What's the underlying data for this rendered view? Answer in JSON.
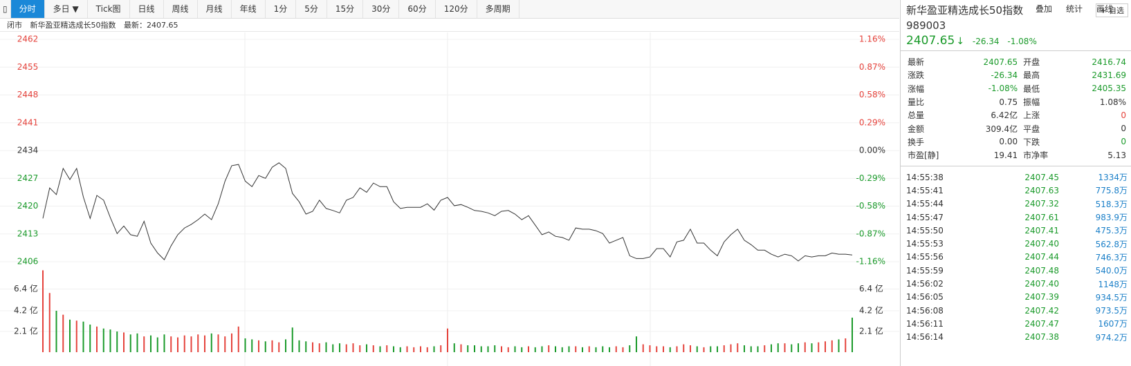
{
  "toolbar": {
    "tabs": [
      "分时",
      "多日 ▼",
      "Tick图",
      "日线",
      "周线",
      "月线",
      "年线",
      "1分",
      "5分",
      "15分",
      "30分",
      "60分",
      "120分",
      "多周期"
    ],
    "tools": [
      "叠加",
      "统计",
      "画线"
    ]
  },
  "info": {
    "status": "闭市",
    "name": "新华盈亚精选成长50指数",
    "latest": "最新：2407.65"
  },
  "chart_data": [
    {
      "type": "line",
      "series": [
        {
          "name": "新华盈亚精选成长50指数",
          "color": "#333333",
          "values": [
            2416.9,
            2424.6,
            2422.9,
            2429.5,
            2426.7,
            2429.5,
            2422.3,
            2416.9,
            2422.7,
            2421.5,
            2417.1,
            2413.1,
            2415.0,
            2412.8,
            2412.4,
            2416.2,
            2410.7,
            2408.2,
            2406.5,
            2410.0,
            2412.8,
            2414.5,
            2415.4,
            2416.6,
            2418.0,
            2416.6,
            2420.6,
            2426.3,
            2430.2,
            2430.5,
            2426.3,
            2424.9,
            2427.7,
            2427.0,
            2429.8,
            2430.9,
            2429.5,
            2423.2,
            2421.1,
            2418.0,
            2418.7,
            2421.5,
            2419.4,
            2418.9,
            2418.3,
            2421.5,
            2422.2,
            2424.6,
            2423.5,
            2425.8,
            2424.9,
            2424.9,
            2421.1,
            2419.4,
            2419.7,
            2419.7,
            2419.7,
            2420.6,
            2419.0,
            2421.5,
            2422.2,
            2420.1,
            2420.4,
            2419.7,
            2418.9,
            2418.7,
            2418.3,
            2417.6,
            2418.7,
            2418.9,
            2418.0,
            2416.6,
            2417.6,
            2415.2,
            2412.8,
            2413.5,
            2412.4,
            2412.1,
            2411.4,
            2414.5,
            2414.2,
            2414.2,
            2413.8,
            2413.1,
            2410.7,
            2411.4,
            2412.1,
            2407.5,
            2406.8,
            2406.8,
            2407.2,
            2409.3,
            2409.3,
            2407.2,
            2411.0,
            2411.4,
            2414.2,
            2410.7,
            2410.7,
            2408.9,
            2407.5,
            2411.0,
            2412.8,
            2414.2,
            2411.4,
            2410.3,
            2408.9,
            2408.9,
            2407.9,
            2407.2,
            2407.9,
            2407.5,
            2406.2,
            2407.5,
            2407.2,
            2407.5,
            2407.5,
            2408.2,
            2407.9,
            2407.9,
            2407.7
          ]
        }
      ],
      "ylim": [
        2406,
        2462
      ],
      "yticks": [
        2462,
        2455,
        2448,
        2441,
        2434,
        2427,
        2420,
        2413,
        2406
      ],
      "y2lim": [
        -1.16,
        1.16
      ],
      "y2ticks": [
        {
          "value": 1.16,
          "label": "1.16%"
        },
        {
          "value": 0.87,
          "label": "0.87%"
        },
        {
          "value": 0.58,
          "label": "0.58%"
        },
        {
          "value": 0.29,
          "label": "0.29%"
        },
        {
          "value": 0,
          "label": "0.00%"
        },
        {
          "value": -0.29,
          "label": "-0.29%"
        },
        {
          "value": -0.58,
          "label": "-0.58%"
        },
        {
          "value": -0.87,
          "label": "-0.87%"
        },
        {
          "value": -1.16,
          "label": "-1.16%"
        }
      ],
      "grid": true
    },
    {
      "type": "bar",
      "values": [
        8.3,
        6.0,
        4.2,
        3.8,
        3.3,
        3.2,
        3.1,
        2.8,
        2.6,
        2.4,
        2.3,
        2.1,
        2.0,
        1.8,
        1.9,
        1.6,
        1.7,
        1.5,
        1.8,
        1.6,
        1.5,
        1.7,
        1.6,
        1.8,
        1.7,
        1.9,
        1.8,
        1.6,
        1.9,
        2.6,
        1.4,
        1.3,
        1.2,
        1.1,
        1.2,
        1.0,
        1.3,
        2.5,
        1.2,
        1.1,
        1.0,
        0.9,
        1.0,
        0.8,
        0.9,
        0.8,
        0.9,
        0.7,
        0.8,
        0.7,
        0.6,
        0.7,
        0.6,
        0.5,
        0.6,
        0.5,
        0.6,
        0.5,
        0.6,
        0.7,
        2.4,
        0.9,
        0.8,
        0.7,
        0.7,
        0.6,
        0.6,
        0.7,
        0.6,
        0.5,
        0.6,
        0.5,
        0.6,
        0.5,
        0.6,
        0.7,
        0.6,
        0.5,
        0.6,
        0.6,
        0.5,
        0.6,
        0.5,
        0.6,
        0.5,
        0.6,
        0.5,
        0.7,
        1.6,
        0.8,
        0.7,
        0.6,
        0.6,
        0.5,
        0.6,
        0.8,
        0.7,
        0.6,
        0.5,
        0.6,
        0.6,
        0.7,
        0.8,
        0.9,
        0.7,
        0.6,
        0.6,
        0.7,
        0.8,
        0.9,
        0.9,
        0.8,
        0.9,
        1.0,
        0.9,
        1.0,
        1.1,
        1.2,
        1.3,
        1.4,
        3.5
      ],
      "up_color": "#e5423b",
      "down_color": "#1a9a2a",
      "ylim": [
        0,
        8.4
      ],
      "yticks": [
        {
          "value": 6.4,
          "label": "6.4 亿"
        },
        {
          "value": 4.2,
          "label": "4.2 亿"
        },
        {
          "value": 2.1,
          "label": "2.1 亿"
        }
      ],
      "grid": true
    }
  ],
  "panel": {
    "name": "新华盈亚精选成长50指数",
    "code": "989003",
    "button": "+ 自选",
    "price": "2407.65",
    "change": "-26.34",
    "pct": "-1.08%",
    "stats": [
      [
        "最新",
        "2407.65",
        "开盘",
        "2416.74"
      ],
      [
        "涨跌",
        "-26.34",
        "最高",
        "2431.69"
      ],
      [
        "涨幅",
        "-1.08%",
        "最低",
        "2405.35"
      ],
      [
        "量比",
        "0.75",
        "振幅",
        "1.08%"
      ],
      [
        "总量",
        "6.42亿",
        "上涨",
        "0"
      ],
      [
        "金额",
        "309.4亿",
        "平盘",
        "0"
      ],
      [
        "换手",
        "0.00",
        "下跌",
        "0"
      ],
      [
        "市盈[静]",
        "19.41",
        "市净率",
        "5.13"
      ]
    ],
    "trades": [
      [
        "14:55:38",
        "2407.45",
        "1334万"
      ],
      [
        "14:55:41",
        "2407.63",
        "775.8万"
      ],
      [
        "14:55:44",
        "2407.32",
        "518.3万"
      ],
      [
        "14:55:47",
        "2407.61",
        "983.9万"
      ],
      [
        "14:55:50",
        "2407.41",
        "475.3万"
      ],
      [
        "14:55:53",
        "2407.40",
        "562.8万"
      ],
      [
        "14:55:56",
        "2407.44",
        "746.3万"
      ],
      [
        "14:55:59",
        "2407.48",
        "540.0万"
      ],
      [
        "14:56:02",
        "2407.40",
        "1148万"
      ],
      [
        "14:56:05",
        "2407.39",
        "934.5万"
      ],
      [
        "14:56:08",
        "2407.42",
        "973.5万"
      ],
      [
        "14:56:11",
        "2407.47",
        "1607万"
      ],
      [
        "14:56:14",
        "2407.38",
        "974.2万"
      ]
    ]
  }
}
